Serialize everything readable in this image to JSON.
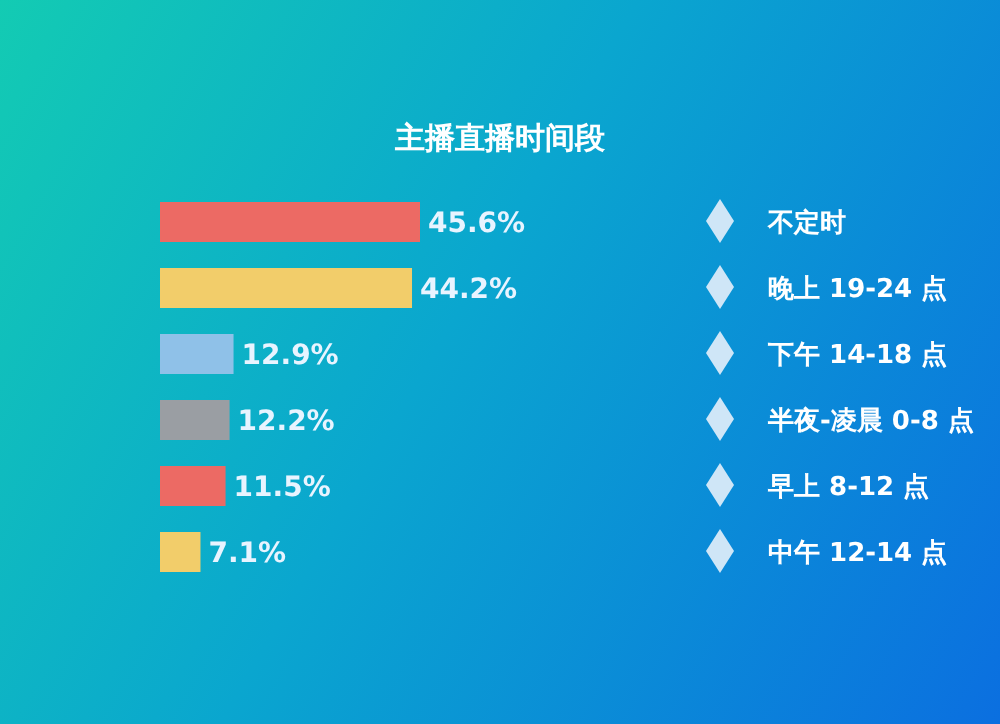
{
  "chart_data": {
    "type": "bar",
    "orientation": "horizontal",
    "title": "主播直播时间段",
    "categories": [
      "不定时",
      "晚上 19-24 点",
      "下午 14-18 点",
      "半夜-凌晨 0-8 点",
      "早上 8-12 点",
      "中午 12-14 点"
    ],
    "values": [
      45.6,
      44.2,
      12.9,
      12.2,
      11.5,
      7.1
    ],
    "colors": [
      "#ec6a64",
      "#f2cd6a",
      "#8fc1e8",
      "#9a9ea3",
      "#ec6a64",
      "#f2cd6a"
    ],
    "value_labels": [
      "45.6%",
      "44.2%",
      "12.9%",
      "12.2%",
      "11.5%",
      "7.1%"
    ],
    "grid": false,
    "legend": false
  }
}
